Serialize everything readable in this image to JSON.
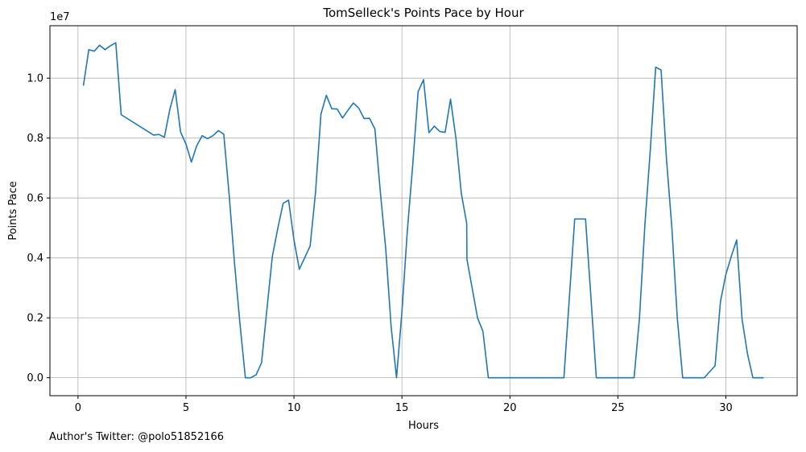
{
  "chart_data": {
    "type": "line",
    "title": "TomSelleck's Points Pace by Hour",
    "xlabel": "Hours",
    "ylabel": "Points Pace",
    "y_multiplier": "1e7",
    "xlim": [
      -1.3,
      33.3
    ],
    "ylim": [
      -600000,
      11750000
    ],
    "x_ticks": [
      0,
      5,
      10,
      15,
      20,
      25,
      30
    ],
    "x_tick_labels": [
      "0",
      "5",
      "10",
      "15",
      "20",
      "25",
      "30"
    ],
    "y_ticks": [
      0,
      2000000,
      4000000,
      6000000,
      8000000,
      10000000
    ],
    "y_tick_labels": [
      "0.0",
      "0.2",
      "0.4",
      "0.6",
      "0.8",
      "1.0"
    ],
    "grid": true,
    "line_color": "#1f77b4",
    "series": [
      {
        "x": [
          0.25,
          0.5,
          0.75,
          1.0,
          1.25,
          1.5,
          1.75,
          2.0,
          3.5,
          3.75,
          4.0,
          4.25,
          4.5,
          4.75,
          5.0,
          5.25,
          5.5,
          5.75,
          6.0,
          6.25,
          6.5,
          6.75,
          7.0,
          7.25,
          7.5,
          7.75,
          8.0,
          8.25,
          8.5,
          8.75,
          9.0,
          9.25,
          9.5,
          9.75,
          10.0,
          10.25,
          10.75,
          11.0,
          11.25,
          11.5,
          11.75,
          12.0,
          12.25,
          12.5,
          12.75,
          13.0,
          13.25,
          13.5,
          13.75,
          14.0,
          14.25,
          14.5,
          14.75,
          15.0,
          15.25,
          15.5,
          15.75,
          16.0,
          16.25,
          16.5,
          16.75,
          17.0,
          17.25,
          17.5,
          17.75,
          18.0,
          18.01,
          18.25,
          18.5,
          18.75,
          19.0,
          22.5,
          23.0,
          23.25,
          23.5,
          23.75,
          24.0,
          25.75,
          26.0,
          26.25,
          26.5,
          26.75,
          27.0,
          27.25,
          27.5,
          27.75,
          28.0,
          29.0,
          29.5,
          29.75,
          30.0,
          30.25,
          30.5,
          30.75,
          31.0,
          31.25,
          31.75
        ],
        "y": [
          9750000,
          10950000,
          10900000,
          11100000,
          10950000,
          11080000,
          11180000,
          8780000,
          8100000,
          8120000,
          8030000,
          8950000,
          9620000,
          8200000,
          7800000,
          7200000,
          7750000,
          8080000,
          7980000,
          8080000,
          8250000,
          8130000,
          6100000,
          3800000,
          1800000,
          0,
          0,
          100000,
          500000,
          2300000,
          4050000,
          4980000,
          5820000,
          5930000,
          4600000,
          3620000,
          4400000,
          6200000,
          8800000,
          9430000,
          8980000,
          8970000,
          8670000,
          8930000,
          9170000,
          9000000,
          8650000,
          8660000,
          8300000,
          6200000,
          4300000,
          1700000,
          0,
          2200000,
          4900000,
          7100000,
          9550000,
          9950000,
          8180000,
          8400000,
          8220000,
          8190000,
          9300000,
          8000000,
          6150000,
          5150000,
          3950000,
          3000000,
          2000000,
          1550000,
          0,
          0,
          5300000,
          5300000,
          5300000,
          2700000,
          0,
          0,
          2000000,
          5100000,
          7600000,
          10370000,
          10270000,
          7300000,
          5000000,
          2000000,
          0,
          0,
          400000,
          2550000,
          3450000,
          4050000,
          4600000,
          1950000,
          800000,
          0,
          0
        ]
      }
    ],
    "offset_text": "1e7"
  },
  "footer": {
    "author_note": "Author's Twitter: @polo51852166"
  }
}
